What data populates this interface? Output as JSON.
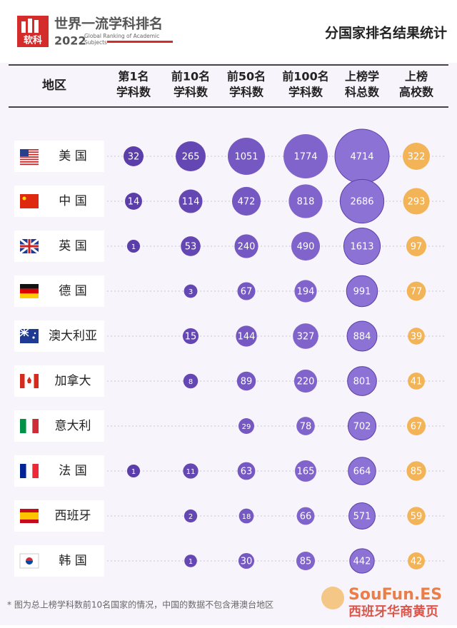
{
  "header": {
    "logo": "软科",
    "title": "世界一流学科排名",
    "year": "2022",
    "subtitle_lines": [
      "Global Ranking of Academic",
      "Subjects"
    ],
    "page_title": "分国家排名结果统计"
  },
  "table": {
    "region_header": "地区",
    "columns": [
      {
        "lines": [
          "第1名",
          "学科数"
        ],
        "color": "#5b3ea9"
      },
      {
        "lines": [
          "前10名",
          "学科数"
        ],
        "color": "#6447b3"
      },
      {
        "lines": [
          "前50名",
          "学科数"
        ],
        "color": "#7558c2"
      },
      {
        "lines": [
          "前100名",
          "学科数"
        ],
        "color": "#8064cb"
      },
      {
        "lines": [
          "上榜学",
          "科总数"
        ],
        "color": "#8d72d6"
      },
      {
        "lines": [
          "上榜",
          "高校数"
        ],
        "color": "#f2b456"
      }
    ],
    "rows": [
      {
        "country": "美 国",
        "values": [
          32,
          265,
          1051,
          1774,
          4714,
          322
        ]
      },
      {
        "country": "中 国",
        "values": [
          14,
          114,
          472,
          818,
          2686,
          293
        ]
      },
      {
        "country": "英 国",
        "values": [
          1,
          53,
          240,
          490,
          1613,
          97
        ]
      },
      {
        "country": "德 国",
        "values": [
          null,
          3,
          67,
          194,
          991,
          77
        ]
      },
      {
        "country": "澳大利亚",
        "values": [
          null,
          15,
          144,
          327,
          884,
          39
        ]
      },
      {
        "country": "加拿大",
        "values": [
          null,
          8,
          89,
          220,
          801,
          41
        ]
      },
      {
        "country": "意大利",
        "values": [
          null,
          null,
          29,
          78,
          702,
          67
        ]
      },
      {
        "country": "法 国",
        "values": [
          1,
          11,
          63,
          165,
          664,
          85
        ]
      },
      {
        "country": "西班牙",
        "values": [
          null,
          2,
          18,
          66,
          571,
          59
        ]
      },
      {
        "country": "韩 国",
        "values": [
          null,
          1,
          30,
          85,
          442,
          42
        ]
      }
    ]
  },
  "footnote": "* 图为总上榜学科数前10名国家的情况，中国的数据不包含港澳台地区",
  "watermark": {
    "brand": "SouFun.ES",
    "text": "西班牙华商黄页"
  }
}
